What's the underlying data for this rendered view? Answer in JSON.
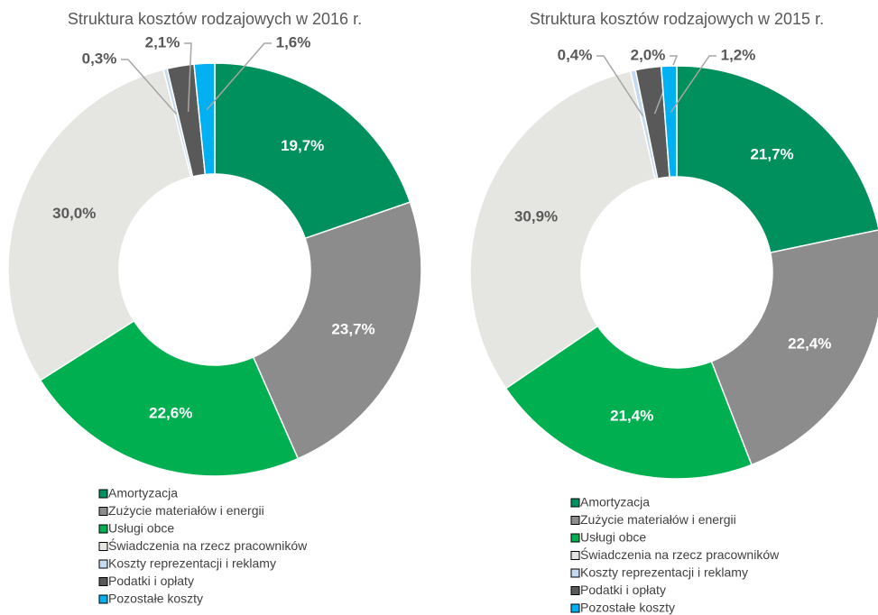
{
  "chart_data": [
    {
      "type": "donut",
      "title": "Struktura kosztów rodzajowych w 2016 r.",
      "categories": [
        "Amortyzacja",
        "Zużycie materiałów i energii",
        "Usługi obce",
        "Świadczenia na rzecz pracowników",
        "Koszty reprezentacji i reklamy",
        "Podatki i opłaty",
        "Pozostałe koszty"
      ],
      "values": [
        19.7,
        23.7,
        22.6,
        30.0,
        0.3,
        2.1,
        1.6
      ],
      "value_labels": [
        "19,7%",
        "23,7%",
        "22,6%",
        "30,0%",
        "0,3%",
        "2,1%",
        "1,6%"
      ],
      "colors": [
        "#00905e",
        "#8c8c8c",
        "#00b050",
        "#e5e5e1",
        "#c5d9f1",
        "#595959",
        "#00b0f0"
      ]
    },
    {
      "type": "donut",
      "title": "Struktura kosztów rodzajowych w 2015 r.",
      "categories": [
        "Amortyzacja",
        "Zużycie materiałów i energii",
        "Usługi obce",
        "Świadczenia na rzecz pracowników",
        "Koszty reprezentacji i reklamy",
        "Podatki i opłaty",
        "Pozostałe koszty"
      ],
      "values": [
        21.7,
        22.4,
        21.4,
        30.9,
        0.4,
        2.0,
        1.2
      ],
      "value_labels": [
        "21,7%",
        "22,4%",
        "21,4%",
        "30,9%",
        "0,4%",
        "2,0%",
        "1,2%"
      ],
      "colors": [
        "#00905e",
        "#8c8c8c",
        "#00b050",
        "#e5e5e1",
        "#c5d9f1",
        "#595959",
        "#00b0f0"
      ]
    }
  ]
}
